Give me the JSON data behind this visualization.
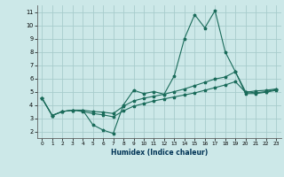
{
  "xlabel": "Humidex (Indice chaleur)",
  "bg_color": "#cce8e8",
  "grid_color": "#a8cccc",
  "line_color": "#1a6b5a",
  "xlim": [
    -0.5,
    23.5
  ],
  "ylim": [
    1.5,
    11.5
  ],
  "xticks": [
    0,
    1,
    2,
    3,
    4,
    5,
    6,
    7,
    8,
    9,
    10,
    11,
    12,
    13,
    14,
    15,
    16,
    17,
    18,
    19,
    20,
    21,
    22,
    23
  ],
  "yticks": [
    2,
    3,
    4,
    5,
    6,
    7,
    8,
    9,
    10,
    11
  ],
  "series1_x": [
    0,
    1,
    2,
    3,
    4,
    5,
    6,
    7,
    8,
    9,
    10,
    11,
    12,
    13,
    14,
    15,
    16,
    17,
    18,
    19,
    20,
    21,
    22,
    23
  ],
  "series1_y": [
    4.5,
    3.2,
    3.5,
    3.6,
    3.6,
    2.5,
    2.1,
    1.85,
    4.0,
    5.1,
    4.85,
    5.0,
    4.8,
    6.2,
    9.0,
    10.8,
    9.8,
    11.1,
    8.0,
    6.5,
    4.85,
    4.85,
    4.95,
    5.1
  ],
  "series2_x": [
    0,
    1,
    2,
    3,
    4,
    5,
    6,
    7,
    8,
    9,
    10,
    11,
    12,
    13,
    14,
    15,
    16,
    17,
    18,
    19,
    20,
    21,
    22,
    23
  ],
  "series2_y": [
    4.5,
    3.2,
    3.5,
    3.6,
    3.6,
    3.5,
    3.45,
    3.35,
    3.9,
    4.3,
    4.5,
    4.65,
    4.8,
    5.0,
    5.2,
    5.45,
    5.7,
    5.95,
    6.1,
    6.5,
    5.0,
    4.9,
    5.0,
    5.15
  ],
  "series3_x": [
    0,
    1,
    2,
    3,
    4,
    5,
    6,
    7,
    8,
    9,
    10,
    11,
    12,
    13,
    14,
    15,
    16,
    17,
    18,
    19,
    20,
    21,
    22,
    23
  ],
  "series3_y": [
    4.5,
    3.2,
    3.5,
    3.6,
    3.5,
    3.35,
    3.25,
    3.1,
    3.55,
    3.9,
    4.1,
    4.3,
    4.45,
    4.6,
    4.75,
    4.9,
    5.1,
    5.3,
    5.5,
    5.75,
    4.95,
    5.05,
    5.1,
    5.2
  ]
}
